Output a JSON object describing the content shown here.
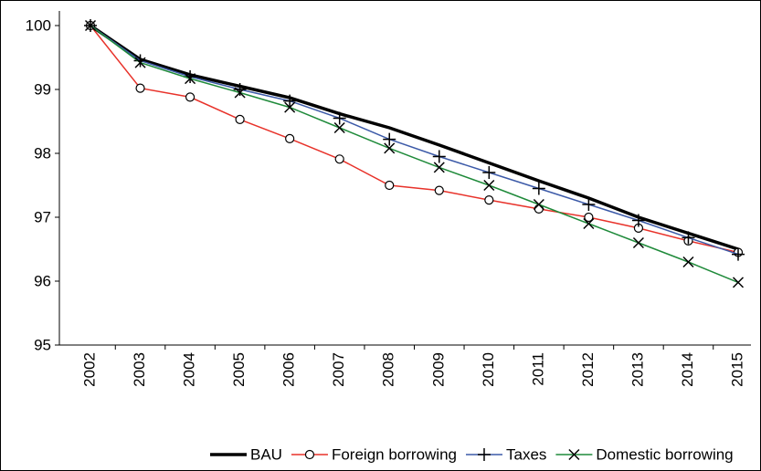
{
  "chart_data": {
    "type": "line",
    "categories": [
      "2002",
      "2003",
      "2004",
      "2005",
      "2006",
      "2007",
      "2008",
      "2009",
      "2010",
      "2011",
      "2012",
      "2013",
      "2014",
      "2015"
    ],
    "series": [
      {
        "name": "BAU",
        "color": "#000000",
        "marker": "none",
        "values": [
          100,
          99.47,
          99.23,
          99.05,
          98.87,
          98.62,
          98.4,
          98.13,
          97.85,
          97.57,
          97.3,
          97.0,
          96.75,
          96.5
        ]
      },
      {
        "name": "Foreign borrowing",
        "color": "#e8322a",
        "marker": "circle",
        "values": [
          100,
          99.02,
          98.88,
          98.53,
          98.23,
          97.91,
          97.5,
          97.42,
          97.27,
          97.13,
          97.0,
          96.83,
          96.63,
          96.45
        ]
      },
      {
        "name": "Taxes",
        "color": "#3c5aa8",
        "marker": "plus",
        "values": [
          100,
          99.45,
          99.2,
          99.0,
          98.82,
          98.55,
          98.22,
          97.95,
          97.7,
          97.45,
          97.2,
          96.95,
          96.68,
          96.42
        ]
      },
      {
        "name": "Domestic borrowing",
        "color": "#1f8a3a",
        "marker": "cross",
        "values": [
          100,
          99.42,
          99.17,
          98.95,
          98.72,
          98.4,
          98.08,
          97.78,
          97.5,
          97.2,
          96.9,
          96.6,
          96.3,
          95.98
        ]
      }
    ],
    "ylim": [
      95,
      100
    ],
    "yticks": [
      95,
      96,
      97,
      98,
      99,
      100
    ],
    "grid": false,
    "legend": "bottom"
  }
}
